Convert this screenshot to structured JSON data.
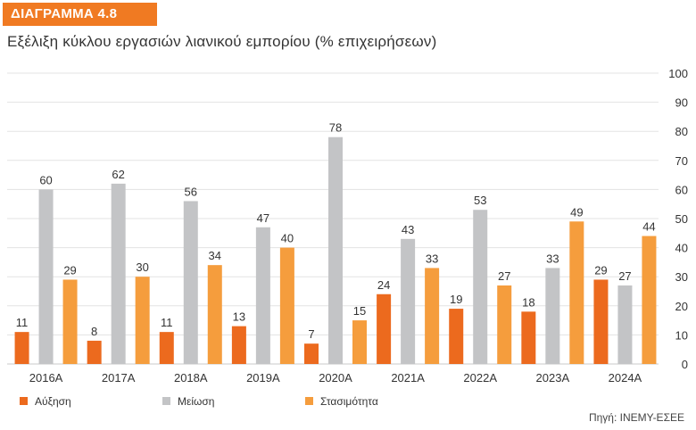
{
  "badge": "ΔΙΑΓΡΑΜΜΑ 4.8",
  "title": "Εξέλιξη κύκλου εργασιών λιανικού εμπορίου (% επιχειρήσεων)",
  "source": "Πηγή: ΙΝΕΜΥ-ΕΣΕΕ",
  "chart_data": {
    "type": "bar",
    "categories": [
      "2016Α",
      "2017Α",
      "2018Α",
      "2019Α",
      "2020Α",
      "2021Α",
      "2022Α",
      "2023Α",
      "2024Α"
    ],
    "series": [
      {
        "name": "Αύξηση",
        "color": "#ec6a1e",
        "values": [
          11,
          8,
          11,
          13,
          7,
          24,
          19,
          18,
          29
        ]
      },
      {
        "name": "Μείωση",
        "color": "#c3c4c6",
        "values": [
          60,
          62,
          56,
          47,
          78,
          43,
          53,
          33,
          27
        ]
      },
      {
        "name": "Στασιμότητα",
        "color": "#f59d3d",
        "values": [
          29,
          30,
          34,
          40,
          15,
          33,
          27,
          49,
          44
        ]
      }
    ],
    "yticks": [
      "0",
      "10",
      "20",
      "30",
      "40",
      "50",
      "60",
      "70",
      "80",
      "90",
      "100"
    ],
    "ylim": [
      0,
      100
    ],
    "y_axis_side": "right",
    "grid": true,
    "legend_position": "bottom-left",
    "data_labels": true
  }
}
